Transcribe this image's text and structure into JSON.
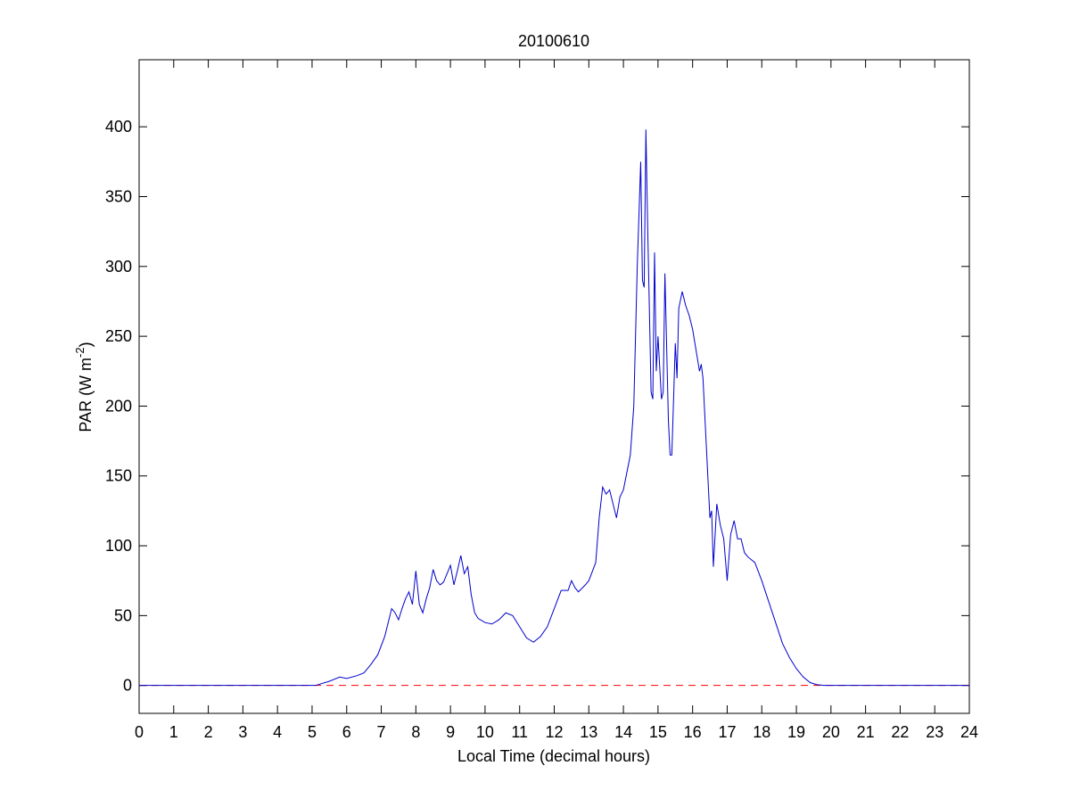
{
  "chart_data": {
    "type": "line",
    "title": "20100610",
    "xlabel": "Local Time (decimal hours)",
    "ylabel": {
      "text": "PAR (W m",
      "sup": "-2",
      "end": ")"
    },
    "xlim": [
      0,
      24
    ],
    "ylim": [
      -20,
      448
    ],
    "xticks": [
      0,
      1,
      2,
      3,
      4,
      5,
      6,
      7,
      8,
      9,
      10,
      11,
      12,
      13,
      14,
      15,
      16,
      17,
      18,
      19,
      20,
      21,
      22,
      23,
      24
    ],
    "yticks": [
      0,
      50,
      100,
      150,
      200,
      250,
      300,
      350,
      400
    ],
    "grid": false,
    "series": [
      {
        "color": "#0000cc",
        "style": "solid",
        "x": [
          0,
          5,
          5.1,
          5.5,
          5.8,
          6.0,
          6.3,
          6.5,
          6.7,
          6.9,
          7.1,
          7.3,
          7.4,
          7.5,
          7.6,
          7.7,
          7.8,
          7.9,
          8.0,
          8.1,
          8.2,
          8.3,
          8.4,
          8.5,
          8.6,
          8.7,
          8.8,
          8.9,
          9.0,
          9.1,
          9.2,
          9.3,
          9.4,
          9.5,
          9.6,
          9.7,
          9.8,
          10.0,
          10.2,
          10.4,
          10.6,
          10.8,
          11.0,
          11.2,
          11.4,
          11.6,
          11.8,
          12.0,
          12.2,
          12.4,
          12.5,
          12.6,
          12.7,
          12.9,
          13.0,
          13.2,
          13.3,
          13.4,
          13.5,
          13.6,
          13.8,
          13.9,
          14.0,
          14.2,
          14.3,
          14.4,
          14.5,
          14.55,
          14.6,
          14.65,
          14.7,
          14.8,
          14.85,
          14.9,
          14.95,
          15.0,
          15.1,
          15.15,
          15.2,
          15.3,
          15.35,
          15.4,
          15.5,
          15.55,
          15.6,
          15.7,
          15.8,
          15.9,
          16.0,
          16.1,
          16.2,
          16.25,
          16.3,
          16.4,
          16.5,
          16.55,
          16.6,
          16.7,
          16.8,
          16.9,
          17.0,
          17.1,
          17.2,
          17.3,
          17.4,
          17.5,
          17.6,
          17.7,
          17.8,
          18.0,
          18.2,
          18.4,
          18.6,
          18.8,
          19.0,
          19.2,
          19.4,
          19.6,
          19.8,
          24
        ],
        "values": [
          0,
          0,
          0,
          3,
          6,
          5,
          7,
          9,
          15,
          22,
          35,
          55,
          52,
          47,
          55,
          62,
          67,
          58,
          82,
          58,
          52,
          62,
          70,
          83,
          75,
          72,
          74,
          80,
          86,
          72,
          82,
          93,
          80,
          85,
          65,
          52,
          48,
          45,
          44,
          47,
          52,
          50,
          42,
          34,
          31,
          35,
          42,
          55,
          68,
          68,
          75,
          70,
          67,
          72,
          75,
          88,
          120,
          142,
          137,
          140,
          120,
          135,
          140,
          165,
          200,
          300,
          375,
          290,
          285,
          398,
          330,
          210,
          205,
          310,
          225,
          250,
          205,
          210,
          295,
          190,
          165,
          165,
          245,
          220,
          270,
          282,
          272,
          265,
          255,
          240,
          225,
          230,
          220,
          170,
          120,
          125,
          85,
          130,
          115,
          105,
          75,
          108,
          118,
          105,
          105,
          95,
          92,
          90,
          88,
          75,
          60,
          45,
          30,
          20,
          12,
          6,
          2,
          0.5,
          0,
          0
        ]
      },
      {
        "color": "#ff0000",
        "style": "dashed",
        "x": [
          0,
          24
        ],
        "values": [
          0,
          0
        ]
      }
    ]
  }
}
